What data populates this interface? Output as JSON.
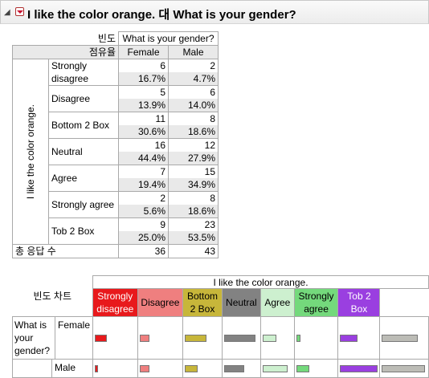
{
  "report": {
    "title": "I like the color orange. 대 What is your gender?"
  },
  "table": {
    "corner_top": "빈도",
    "corner_bottom": "점유율",
    "col_group": "What is your gender?",
    "columns": [
      "Female",
      "Male"
    ],
    "row_group": "I like the color orange.",
    "rows": [
      {
        "label": "Strongly disagree",
        "counts": [
          "6",
          "2"
        ],
        "shares": [
          "16.7%",
          "4.7%"
        ]
      },
      {
        "label": "Disagree",
        "counts": [
          "5",
          "6"
        ],
        "shares": [
          "13.9%",
          "14.0%"
        ]
      },
      {
        "label": "Bottom 2 Box",
        "counts": [
          "11",
          "8"
        ],
        "shares": [
          "30.6%",
          "18.6%"
        ]
      },
      {
        "label": "Neutral",
        "counts": [
          "16",
          "12"
        ],
        "shares": [
          "44.4%",
          "27.9%"
        ]
      },
      {
        "label": "Agree",
        "counts": [
          "7",
          "15"
        ],
        "shares": [
          "19.4%",
          "34.9%"
        ]
      },
      {
        "label": "Strongly agree",
        "counts": [
          "2",
          "8"
        ],
        "shares": [
          "5.6%",
          "18.6%"
        ]
      },
      {
        "label": "Tob 2 Box",
        "counts": [
          "9",
          "23"
        ],
        "shares": [
          "25.0%",
          "53.5%"
        ]
      }
    ],
    "total_label": "총 응답 수",
    "totals": [
      "36",
      "43"
    ]
  },
  "freq_chart": {
    "title": "빈도 차트",
    "group": "I like the color orange.",
    "levels": [
      {
        "label": "Strongly disagree",
        "color": "#e8191c",
        "text": "#ffffff"
      },
      {
        "label": "Disagree",
        "color": "#ef7f7f",
        "text": "#000000"
      },
      {
        "label": "Bottom 2 Box",
        "color": "#c7b63a",
        "text": "#000000"
      },
      {
        "label": "Neutral",
        "color": "#828282",
        "text": "#000000"
      },
      {
        "label": "Agree",
        "color": "#cdf0cf",
        "text": "#000000"
      },
      {
        "label": "Strongly agree",
        "color": "#74d97c",
        "text": "#000000"
      },
      {
        "label": "Tob 2 Box",
        "color": "#9a3fe0",
        "text": "#ffffff"
      }
    ],
    "total_color": "#bcbcb6",
    "row_group": "What is your gender?",
    "rows": [
      {
        "label": "Female",
        "counts": [
          6,
          5,
          11,
          16,
          7,
          2,
          9
        ],
        "total": 36
      },
      {
        "label": "Male",
        "counts": [
          2,
          6,
          8,
          12,
          15,
          8,
          23
        ],
        "total": 43
      }
    ]
  }
}
